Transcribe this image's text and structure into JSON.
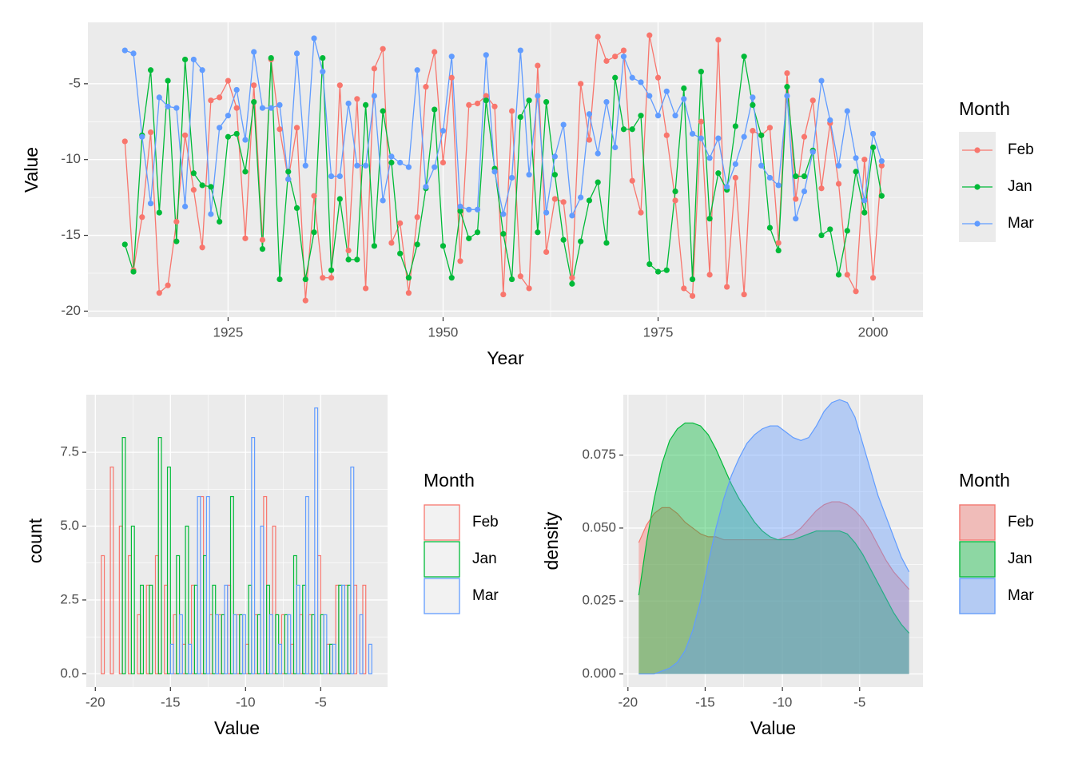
{
  "chart_data": [
    {
      "type": "line",
      "xlabel": "Year",
      "ylabel": "Value",
      "legend_title": "Month",
      "x": [
        1913,
        1914,
        1915,
        1916,
        1917,
        1918,
        1919,
        1920,
        1921,
        1922,
        1923,
        1924,
        1925,
        1926,
        1927,
        1928,
        1929,
        1930,
        1931,
        1932,
        1933,
        1934,
        1935,
        1936,
        1937,
        1938,
        1939,
        1940,
        1941,
        1942,
        1943,
        1944,
        1945,
        1946,
        1947,
        1948,
        1949,
        1950,
        1951,
        1952,
        1953,
        1954,
        1955,
        1956,
        1957,
        1958,
        1959,
        1960,
        1961,
        1962,
        1963,
        1964,
        1965,
        1966,
        1967,
        1968,
        1969,
        1970,
        1971,
        1972,
        1973,
        1974,
        1975,
        1976,
        1977,
        1978,
        1979,
        1980,
        1981,
        1982,
        1983,
        1984,
        1985,
        1986,
        1987,
        1988,
        1989,
        1990,
        1991,
        1992,
        1993,
        1994,
        1995,
        1996,
        1997,
        1998,
        1999,
        2000,
        2001
      ],
      "series": [
        {
          "name": "Feb",
          "color": "#F8766D",
          "values": [
            -8.8,
            -17.3,
            -13.8,
            -8.2,
            -18.8,
            -18.3,
            -14.1,
            -8.4,
            -12,
            -15.8,
            -6.1,
            -5.9,
            -4.8,
            -6.6,
            -15.2,
            -5.1,
            -15.3,
            -3.4,
            -8,
            -11.3,
            -7.9,
            -19.3,
            -12.4,
            -17.8,
            -17.8,
            -5.1,
            -16,
            -6,
            -18.5,
            -4,
            -2.7,
            -15.5,
            -14.2,
            -18.8,
            -13.8,
            -5.2,
            -2.9,
            -10.2,
            -4.6,
            -16.7,
            -6.4,
            -6.3,
            -5.8,
            -6.5,
            -18.9,
            -6.8,
            -17.7,
            -18.5,
            -3.8,
            -16.1,
            -12.6,
            -12.8,
            -17.8,
            -5,
            -8.7,
            -1.9,
            -3.5,
            -3.2,
            -2.8,
            -11.4,
            -13.5,
            -1.8,
            -4.6,
            -8.4,
            -12.7,
            -18.5,
            -19,
            -7.5,
            -17.6,
            -2.1,
            -18.4,
            -11.2,
            -18.9,
            -8.1,
            -8.4,
            -7.9,
            -15.5,
            -4.3,
            -12.6,
            -8.5,
            -6.1,
            -11.9,
            -7.6,
            -11.6,
            -17.6,
            -18.7,
            -10,
            -17.8,
            -10.4
          ]
        },
        {
          "name": "Jan",
          "color": "#00BA38",
          "values": [
            -15.6,
            -17.4,
            -8.4,
            -4.1,
            -13.5,
            -4.8,
            -15.4,
            -3.4,
            -10.9,
            -11.7,
            -11.8,
            -14.1,
            -8.5,
            -8.3,
            -10.8,
            -6.2,
            -15.9,
            -3.3,
            -17.9,
            -10.8,
            -13.2,
            -17.9,
            -14.8,
            -3.3,
            -17.3,
            -12.6,
            -16.6,
            -16.6,
            -6.4,
            -15.7,
            -6.8,
            -10.2,
            -16.2,
            -17.8,
            -15.6,
            -11.9,
            -6.7,
            -15.7,
            -17.8,
            -13.4,
            -15.2,
            -14.8,
            -6.1,
            -10.6,
            -14.9,
            -17.9,
            -7.2,
            -6.1,
            -14.8,
            -6.2,
            -11,
            -15.3,
            -18.2,
            -15.4,
            -12.7,
            -11.5,
            -15.5,
            -4.6,
            -8,
            -8,
            -7.1,
            -16.9,
            -17.4,
            -17.3,
            -12.1,
            -5.3,
            -17.9,
            -4.2,
            -13.9,
            -10.9,
            -12,
            -7.8,
            -3.2,
            -6.4,
            -8.4,
            -14.5,
            -16,
            -5.2,
            -11.1,
            -11.1,
            -9.4,
            -15,
            -14.6,
            -17.6,
            -14.7,
            -10.8,
            -13.5,
            -9.2,
            -12.4
          ]
        },
        {
          "name": "Mar",
          "color": "#619CFF",
          "values": [
            -2.8,
            -3,
            -8.5,
            -12.9,
            -5.9,
            -6.5,
            -6.6,
            -13.1,
            -3.4,
            -4.1,
            -13.6,
            -7.9,
            -7.1,
            -5.4,
            -8.7,
            -2.9,
            -6.6,
            -6.6,
            -6.4,
            -11.3,
            -3,
            -10.4,
            -2,
            -4.2,
            -11.1,
            -11.1,
            -6.3,
            -10.4,
            -10.4,
            -5.8,
            -12.7,
            -9.8,
            -10.2,
            -10.5,
            -4.1,
            -11.8,
            -10.5,
            -8.1,
            -3.2,
            -13.1,
            -13.3,
            -13.3,
            -3.1,
            -10.8,
            -13.6,
            -11.2,
            -2.8,
            -11,
            -5.8,
            -13.5,
            -9.8,
            -7.7,
            -13.7,
            -12.5,
            -7,
            -9.6,
            -6.2,
            -9.2,
            -3.2,
            -4.6,
            -4.9,
            -5.8,
            -7.1,
            -5.5,
            -7.1,
            -6,
            -8.3,
            -8.6,
            -9.9,
            -8.6,
            -11.8,
            -10.3,
            -8.5,
            -5.9,
            -10.4,
            -11.2,
            -11.7,
            -5.8,
            -13.9,
            -12.1,
            -9.5,
            -4.8,
            -7.4,
            -10.4,
            -6.8,
            -9.9,
            -12.7,
            -8.3,
            -10.1
          ]
        }
      ],
      "xlim": [
        1908.7,
        2005.8
      ],
      "xticks": [
        1925,
        1950,
        1975,
        2000
      ],
      "ylim": [
        -20.4,
        -0.95
      ],
      "yticks": [
        -5,
        -10,
        -15,
        -20
      ],
      "grid": true
    },
    {
      "type": "histogram",
      "xlabel": "Value",
      "ylabel": "count",
      "legend_title": "Month",
      "bins": [
        -19.6,
        -19,
        -18.4,
        -17.8,
        -17.2,
        -16.6,
        -16,
        -15.4,
        -14.8,
        -14.2,
        -13.6,
        -13,
        -12.4,
        -11.8,
        -11.2,
        -10.6,
        -10,
        -9.4,
        -8.8,
        -8.2,
        -7.6,
        -7,
        -6.4,
        -5.8,
        -5.2,
        -4.6,
        -4,
        -3.4,
        -2.8,
        -2.2,
        -1.6
      ],
      "series": [
        {
          "name": "Feb",
          "color": "#F8766D",
          "values": [
            4,
            7,
            5,
            4,
            2,
            3,
            4,
            3,
            2,
            1,
            3,
            6,
            2,
            2,
            3,
            2,
            1,
            2,
            6,
            5,
            2,
            1,
            2,
            2,
            4,
            1,
            3,
            3,
            3,
            3
          ]
        },
        {
          "name": "Jan",
          "color": "#00BA38",
          "values": [
            0,
            0,
            8,
            5,
            3,
            3,
            8,
            7,
            4,
            5,
            3,
            4,
            3,
            2,
            6,
            2,
            3,
            2,
            3,
            2,
            2,
            4,
            3,
            2,
            2,
            1,
            3,
            3,
            0,
            0
          ]
        },
        {
          "name": "Mar",
          "color": "#619CFF",
          "values": [
            0,
            0,
            0,
            0,
            0,
            0,
            0,
            1,
            2,
            1,
            6,
            6,
            2,
            3,
            2,
            2,
            8,
            5,
            2,
            1,
            2,
            3,
            6,
            9,
            2,
            1,
            3,
            7,
            2,
            1
          ]
        }
      ],
      "xlim": [
        -20.6,
        -0.55
      ],
      "xticks": [
        -20,
        -15,
        -10,
        -5
      ],
      "ylim": [
        -0.45,
        9.45
      ],
      "yticks": [
        {
          "value": 0,
          "label": "0.0"
        },
        2.5,
        {
          "value": 5,
          "label": "5.0"
        },
        7.5
      ],
      "grid": true
    },
    {
      "type": "density",
      "xlabel": "Value",
      "ylabel": "density",
      "legend_title": "Month",
      "x": [
        -19.3,
        -18.8,
        -18.3,
        -17.8,
        -17.3,
        -16.8,
        -16.3,
        -15.8,
        -15.3,
        -14.8,
        -14.3,
        -13.8,
        -13.3,
        -12.8,
        -12.3,
        -11.8,
        -11.3,
        -10.8,
        -10.3,
        -9.8,
        -9.3,
        -8.8,
        -8.3,
        -7.8,
        -7.3,
        -6.8,
        -6.3,
        -5.8,
        -5.3,
        -4.8,
        -4.3,
        -3.8,
        -3.3,
        -2.8,
        -2.3,
        -1.8
      ],
      "series": [
        {
          "name": "Feb",
          "color": "#F8766D",
          "values": [
            0.045,
            0.051,
            0.055,
            0.057,
            0.057,
            0.055,
            0.052,
            0.05,
            0.048,
            0.047,
            0.047,
            0.046,
            0.046,
            0.046,
            0.046,
            0.046,
            0.046,
            0.046,
            0.046,
            0.047,
            0.048,
            0.05,
            0.053,
            0.056,
            0.058,
            0.059,
            0.059,
            0.058,
            0.056,
            0.053,
            0.049,
            0.044,
            0.039,
            0.035,
            0.032,
            0.029
          ]
        },
        {
          "name": "Jan",
          "color": "#00BA38",
          "values": [
            0.027,
            0.045,
            0.06,
            0.072,
            0.08,
            0.084,
            0.086,
            0.086,
            0.085,
            0.082,
            0.077,
            0.071,
            0.065,
            0.06,
            0.056,
            0.052,
            0.049,
            0.047,
            0.046,
            0.046,
            0.046,
            0.047,
            0.048,
            0.049,
            0.049,
            0.049,
            0.049,
            0.048,
            0.045,
            0.041,
            0.036,
            0.031,
            0.026,
            0.021,
            0.017,
            0.014
          ]
        },
        {
          "name": "Mar",
          "color": "#619CFF",
          "values": [
            0.0,
            0.0,
            0.0,
            0.001,
            0.002,
            0.004,
            0.008,
            0.015,
            0.025,
            0.038,
            0.05,
            0.06,
            0.068,
            0.074,
            0.079,
            0.082,
            0.084,
            0.085,
            0.085,
            0.083,
            0.081,
            0.08,
            0.081,
            0.085,
            0.09,
            0.093,
            0.094,
            0.093,
            0.088,
            0.079,
            0.07,
            0.061,
            0.054,
            0.047,
            0.04,
            0.035
          ]
        }
      ],
      "xlim": [
        -20.3,
        -0.9
      ],
      "xticks": [
        -20,
        -15,
        -10,
        -5
      ],
      "ylim": [
        -0.0045,
        0.0957
      ],
      "yticks": [
        {
          "value": 0,
          "label": "0.000"
        },
        {
          "value": 0.025,
          "label": "0.025"
        },
        {
          "value": 0.05,
          "label": "0.050"
        },
        {
          "value": 0.075,
          "label": "0.075"
        }
      ],
      "grid": true
    }
  ]
}
